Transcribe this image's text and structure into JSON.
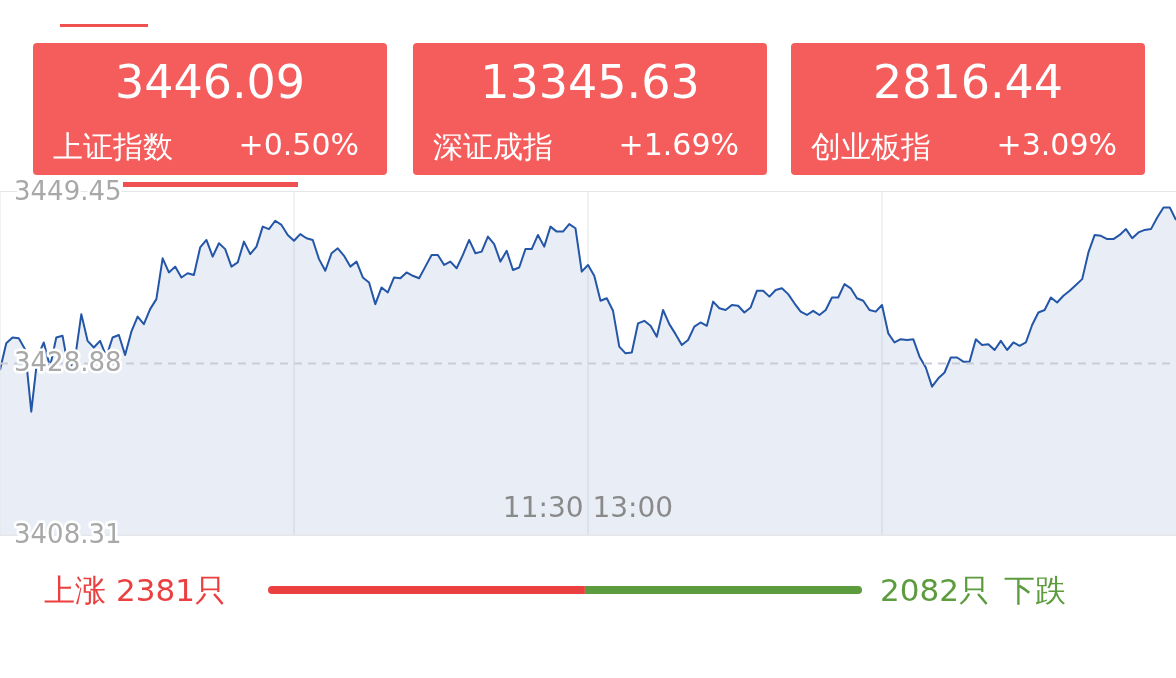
{
  "chart_data": [
    {
      "type": "other",
      "annotations": [
        "3446.09",
        "上证指数",
        "+0.50%",
        "13345.63",
        "深证成指",
        "+1.69%",
        "2816.44",
        "创业板指",
        "+3.09%"
      ]
    },
    {
      "type": "area",
      "categories": [
        null,
        null,
        null,
        null,
        null,
        null,
        null,
        null,
        null,
        null,
        null,
        null,
        null,
        null,
        null,
        null,
        null,
        null,
        null,
        null,
        null,
        null,
        null,
        null,
        null,
        null,
        null,
        null,
        null,
        null,
        null,
        null,
        null,
        null,
        null,
        null,
        null,
        null,
        null,
        null,
        null,
        null,
        null,
        null,
        null,
        null,
        null,
        null,
        null,
        null,
        null,
        null,
        null,
        null,
        null,
        null,
        null,
        null,
        null,
        null,
        null,
        null,
        null,
        null,
        null,
        null,
        null,
        null,
        null,
        null,
        null,
        null,
        null,
        null,
        null,
        null,
        null,
        null,
        null,
        null,
        null,
        null,
        null,
        null,
        null,
        null,
        null,
        null,
        null,
        null,
        null,
        null,
        null,
        null,
        null,
        null,
        null,
        null,
        null,
        null,
        null,
        null,
        null,
        null,
        null,
        null,
        null,
        null,
        null,
        null,
        null,
        null,
        null,
        null,
        null,
        null,
        null,
        null,
        null,
        null,
        null,
        null,
        null,
        null,
        null,
        null,
        null,
        null,
        null,
        null,
        null,
        null,
        null,
        null,
        null,
        null,
        null,
        null,
        null,
        null,
        null,
        null,
        null,
        null,
        null,
        null,
        null,
        null,
        null,
        null,
        null,
        null,
        null,
        null,
        null,
        null,
        null,
        null,
        null,
        null,
        null,
        null,
        null,
        null,
        null,
        null,
        null,
        null,
        null,
        null,
        null,
        null,
        null,
        null,
        null,
        null,
        null,
        null,
        null,
        null,
        null,
        null,
        null,
        null,
        null,
        null,
        null,
        null,
        null
      ],
      "series": [
        {
          "color": "#2456a8",
          "values": [
            3428.1,
            3431.3,
            3432.0,
            3431.9,
            3430.6,
            3423.1,
            3429.7,
            3431.4,
            3428.5,
            3432.0,
            3432.2,
            3428.1,
            3429.5,
            3434.8,
            3431.6,
            3430.8,
            3431.6,
            3429.7,
            3432.0,
            3432.3,
            3429.9,
            3432.7,
            3434.5,
            3433.6,
            3435.4,
            3436.6,
            3441.5,
            3439.8,
            3440.5,
            3439.2,
            3439.7,
            3439.5,
            3442.8,
            3443.7,
            3441.7,
            3443.3,
            3442.6,
            3440.5,
            3441.0,
            3443.5,
            3442.0,
            3442.9,
            3445.3,
            3445.0,
            3446.0,
            3445.5,
            3444.3,
            3443.6,
            3444.4,
            3443.9,
            3443.7,
            3441.4,
            3440.0,
            3442.1,
            3442.7,
            3441.8,
            3440.5,
            3441.1,
            3439.2,
            3438.6,
            3436.0,
            3438.0,
            3437.4,
            3439.2,
            3439.1,
            3439.8,
            3439.4,
            3439.1,
            3440.5,
            3441.9,
            3441.9,
            3440.7,
            3441.1,
            3440.3,
            3441.9,
            3443.7,
            3442.1,
            3442.3,
            3444.1,
            3443.2,
            3441.1,
            3442.4,
            3440.1,
            3440.4,
            3442.6,
            3442.6,
            3444.3,
            3442.9,
            3445.3,
            3444.7,
            3444.7,
            3445.6,
            3445.1,
            3439.9,
            3440.7,
            3439.4,
            3436.4,
            3436.7,
            3435.2,
            3430.9,
            3430.1,
            3430.2,
            3433.7,
            3434.0,
            3433.4,
            3432.1,
            3435.3,
            3433.6,
            3432.4,
            3431.1,
            3431.7,
            3433.3,
            3433.8,
            3433.4,
            3436.3,
            3435.5,
            3435.3,
            3435.9,
            3435.8,
            3435.0,
            3435.6,
            3437.6,
            3437.6,
            3436.9,
            3437.7,
            3437.9,
            3437.2,
            3436.1,
            3435.1,
            3434.7,
            3435.2,
            3434.7,
            3435.3,
            3436.8,
            3436.8,
            3438.4,
            3437.9,
            3436.7,
            3436.4,
            3435.3,
            3435.1,
            3435.9,
            3432.5,
            3431.4,
            3431.8,
            3431.7,
            3431.8,
            3429.7,
            3428.4,
            3426.1,
            3427.1,
            3427.8,
            3429.6,
            3429.6,
            3429.1,
            3429.1,
            3431.8,
            3431.1,
            3431.2,
            3430.5,
            3431.6,
            3430.5,
            3431.4,
            3431.0,
            3431.4,
            3433.5,
            3435.0,
            3435.3,
            3436.8,
            3436.2,
            3437.0,
            3437.6,
            3438.3,
            3439.0,
            3442.2,
            3444.3,
            3444.2,
            3443.8,
            3443.8,
            3444.3,
            3445.0,
            3443.9,
            3444.6,
            3444.9,
            3445.0,
            3446.4,
            3447.6,
            3447.6,
            3446.1
          ]
        }
      ],
      "annotations": [
        "11:30 13:00"
      ],
      "ylim": [
        3408.31,
        3449.45
      ],
      "yticks": [
        3408.31,
        3428.88,
        3449.45
      ],
      "grid": "x",
      "ref_lines": [
        {
          "axis": "y",
          "value": 3428.88,
          "label": null,
          "color": "#c9cdd6",
          "line_style": "dashed"
        }
      ]
    },
    {
      "type": "bar",
      "stacked": true,
      "orientation": "horizontal",
      "categories": [
        null
      ],
      "series": [
        {
          "name": "上涨",
          "color": "#eb4040",
          "values": [
            2381
          ],
          "value_labels": [
            "2381只"
          ]
        },
        {
          "name": "下跌",
          "color": "#5c9c3e",
          "values": [
            2082
          ],
          "value_labels": [
            "2082只"
          ]
        }
      ]
    }
  ]
}
